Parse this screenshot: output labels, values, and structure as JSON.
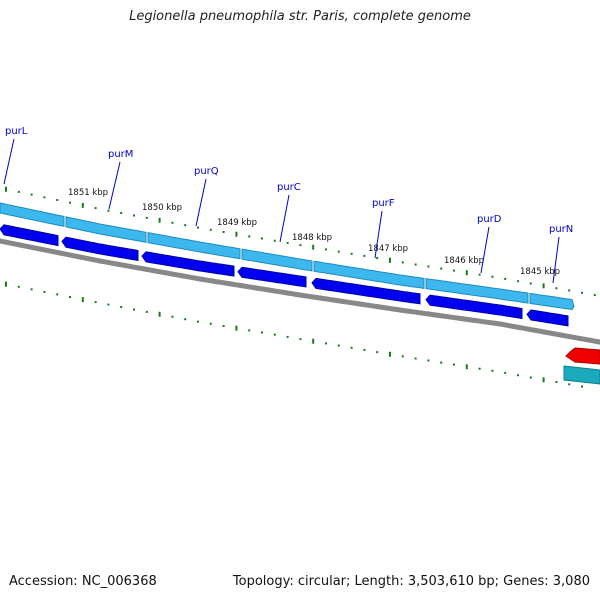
{
  "title": "Legionella pneumophila str. Paris, complete genome",
  "footer": {
    "accession": "Accession: NC_006368",
    "topology": "Topology: circular; Length: 3,503,610 bp; Genes: 3,080"
  },
  "colors": {
    "cds_forward": "#3db8ee",
    "cds_forward_edge": "#1e8bbf",
    "cds_reverse": "#0000ee",
    "backbone": "#888888",
    "gene_label": "#0000cc",
    "tick": "#1a7a1a",
    "feature_red": "#ee0000",
    "feature_teal": "#1aaabb"
  },
  "gene_labels": [
    "purL",
    "purM",
    "purQ",
    "purC",
    "purF",
    "purD",
    "purN"
  ],
  "scale_labels": [
    "1851 kbp",
    "1850 kbp",
    "1849 kbp",
    "1848 kbp",
    "1847 kbp",
    "1846 kbp",
    "1845 kbp"
  ]
}
